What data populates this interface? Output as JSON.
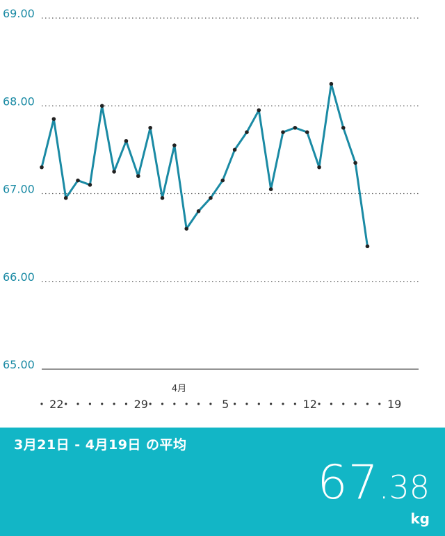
{
  "chart_data": {
    "type": "line",
    "ylim": [
      65.0,
      69.0
    ],
    "yticks": [
      "69.00",
      "68.00",
      "67.00",
      "66.00",
      "65.00"
    ],
    "grid": true,
    "x": [
      "3/21",
      "3/22",
      "3/23",
      "3/24",
      "3/25",
      "3/26",
      "3/27",
      "3/28",
      "3/29",
      "3/30",
      "3/31",
      "4/1",
      "4/2",
      "4/3",
      "4/4",
      "4/5",
      "4/6",
      "4/7",
      "4/8",
      "4/9",
      "4/10",
      "4/11",
      "4/12",
      "4/13",
      "4/14",
      "4/15",
      "4/16",
      "4/17",
      "4/18",
      "4/19"
    ],
    "xtick_labels": [
      {
        "index": 1,
        "label": "22"
      },
      {
        "index": 8,
        "label": "29"
      },
      {
        "index": 15,
        "label": "5"
      },
      {
        "index": 22,
        "label": "12"
      },
      {
        "index": 29,
        "label": "19"
      }
    ],
    "month_label": {
      "index": 11,
      "label": "4月"
    },
    "series": [
      {
        "values": [
          67.3,
          67.85,
          66.95,
          67.15,
          67.1,
          68.0,
          67.25,
          67.6,
          67.2,
          67.75,
          66.95,
          67.55,
          66.6,
          66.8,
          66.95,
          67.15,
          67.5,
          67.7,
          67.95,
          67.05,
          67.7,
          67.75,
          67.7,
          67.3,
          68.25,
          67.75,
          67.35,
          66.4,
          null,
          null
        ]
      }
    ],
    "line_color": "#1a8aa4",
    "point_color": "#222222"
  },
  "footer": {
    "title": "3月21日 - 4月19日 の平均",
    "average_int": "67",
    "average_frac": ".38",
    "unit": "kg",
    "background": "#12b6c6"
  }
}
